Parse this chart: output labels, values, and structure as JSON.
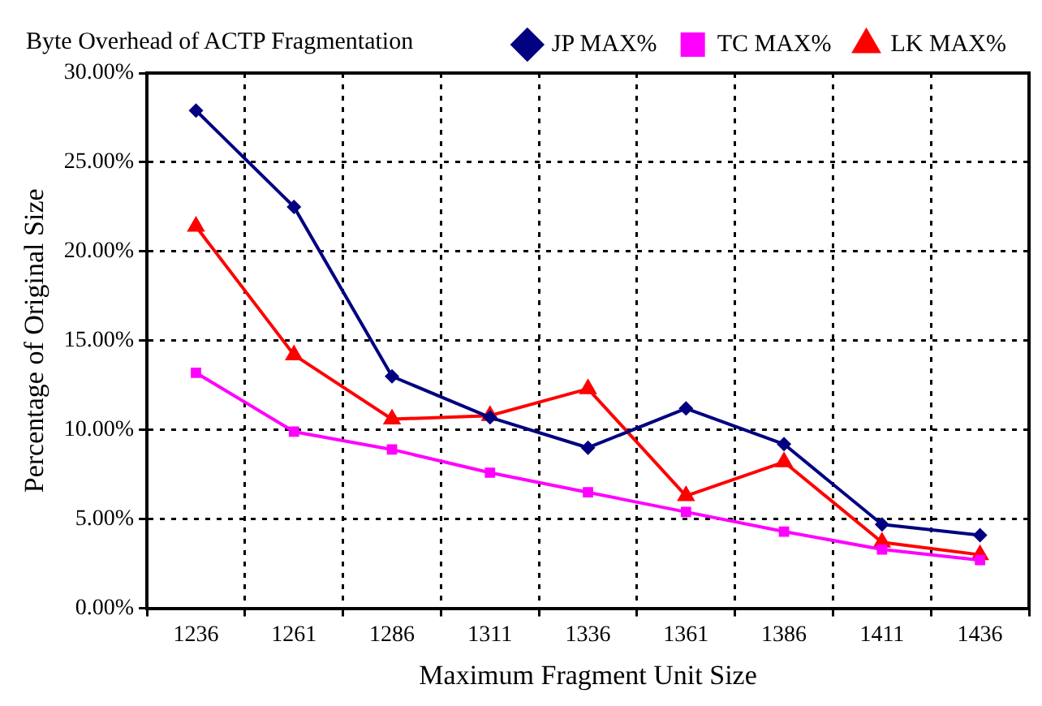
{
  "chart_data": {
    "type": "line",
    "title": "Byte Overhead of ACTP Fragmentation",
    "xlabel": "Maximum Fragment Unit Size",
    "ylabel": "Percentage of Original Size",
    "categories": [
      "1236",
      "1261",
      "1286",
      "1311",
      "1336",
      "1361",
      "1386",
      "1411",
      "1436"
    ],
    "series": [
      {
        "name": "JP MAX%",
        "color": "#000080",
        "marker": "diamond",
        "values": [
          27.9,
          22.5,
          13.0,
          10.7,
          9.0,
          11.2,
          9.2,
          4.7,
          4.1
        ]
      },
      {
        "name": "TC MAX%",
        "color": "#ff00ff",
        "marker": "square",
        "values": [
          13.2,
          9.9,
          8.9,
          7.6,
          6.5,
          5.4,
          4.3,
          3.3,
          2.7
        ]
      },
      {
        "name": "LK MAX%",
        "color": "#ff0000",
        "marker": "triangle",
        "values": [
          21.4,
          14.2,
          10.6,
          10.8,
          12.3,
          6.3,
          8.2,
          3.7,
          3.0
        ]
      }
    ],
    "ylim": [
      0,
      30
    ],
    "yticks": [
      {
        "value": 0,
        "label": "0.00%"
      },
      {
        "value": 5,
        "label": "5.00%"
      },
      {
        "value": 10,
        "label": "10.00%"
      },
      {
        "value": 15,
        "label": "15.00%"
      },
      {
        "value": 20,
        "label": "20.00%"
      },
      {
        "value": 25,
        "label": "25.00%"
      },
      {
        "value": 30,
        "label": "30.00%"
      }
    ],
    "grid": true,
    "legend": "top right",
    "line_style": "solid"
  }
}
